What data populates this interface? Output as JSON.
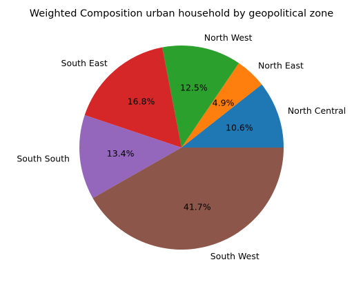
{
  "chart_data": {
    "type": "pie",
    "title": "Weighted Composition urban household by geopolitical zone",
    "categories": [
      "North Central",
      "North East",
      "North West",
      "South East",
      "South South",
      "South West"
    ],
    "values": [
      10.6,
      4.9,
      12.5,
      16.8,
      13.4,
      41.7
    ],
    "value_labels": [
      "10.6%",
      "4.9%",
      "12.5%",
      "16.8%",
      "13.4%",
      "41.7%"
    ],
    "colors": [
      "#1f77b4",
      "#ff7f0e",
      "#2ca02c",
      "#d62728",
      "#9467bd",
      "#8c564b"
    ],
    "start_angle_deg": 0,
    "direction": "counterclockwise",
    "xlabel": "",
    "ylabel": ""
  }
}
